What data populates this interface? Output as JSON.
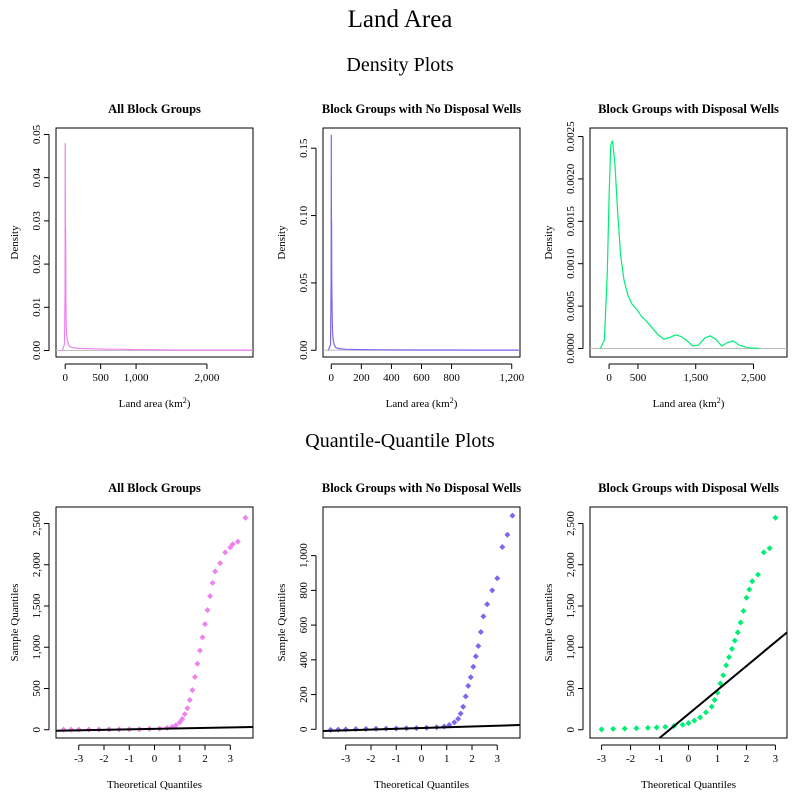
{
  "title": "Land Area",
  "sections": {
    "density": "Density Plots",
    "qq": "Quantile-Quantile Plots"
  },
  "colors": {
    "all": "#EE82EE",
    "no_wells": "#7B68EE",
    "with_wells": "#00EE76",
    "ref_line": "#000000",
    "baseline": "#BEBEBE"
  },
  "chart_data": [
    {
      "type": "line",
      "title": "All Block Groups",
      "xlabel": "Land area (km",
      "xlabel_sup": "2",
      "xlabel_end": ")",
      "ylabel": "Density",
      "color": "#EE82EE",
      "xlim": [
        -130,
        2650
      ],
      "ylim": [
        -0.0015,
        0.0515
      ],
      "xticks": [
        0,
        500,
        1000,
        2000
      ],
      "xticklabels": [
        "0",
        "500",
        "1,000",
        "2,000"
      ],
      "yticks": [
        0,
        0.01,
        0.02,
        0.03,
        0.04,
        0.05
      ],
      "yticklabels": [
        "0.00",
        "0.01",
        "0.02",
        "0.03",
        "0.04",
        "0.05"
      ],
      "x": [
        -40,
        -10,
        -2,
        0,
        2,
        4,
        6,
        8,
        10,
        14,
        20,
        30,
        45,
        60,
        80,
        120,
        200,
        400,
        600,
        800,
        1000,
        1300,
        1600,
        2000,
        2300,
        2650
      ],
      "y": [
        0,
        0.0015,
        0.015,
        0.048,
        0.03,
        0.0225,
        0.028,
        0.02,
        0.012,
        0.006,
        0.004,
        0.0025,
        0.0015,
        0.001,
        0.0008,
        0.0006,
        0.0005,
        0.0004,
        0.0003,
        0.0003,
        0.0002,
        0.0002,
        0.0001,
        0.0001,
        0.0001,
        0.0001
      ]
    },
    {
      "type": "line",
      "title": "Block Groups with No Disposal Wells",
      "xlabel": "Land area (km",
      "xlabel_sup": "2",
      "xlabel_end": ")",
      "ylabel": "Density",
      "color": "#7B68EE",
      "xlim": [
        -55,
        1255
      ],
      "ylim": [
        -0.005,
        0.165
      ],
      "xticks": [
        0,
        200,
        400,
        600,
        800,
        1200
      ],
      "xticklabels": [
        "0",
        "200",
        "400",
        "600",
        "800",
        "1,200"
      ],
      "yticks": [
        0,
        0.05,
        0.1,
        0.15
      ],
      "yticklabels": [
        "0.00",
        "0.05",
        "0.10",
        "0.15"
      ],
      "x": [
        -20,
        -5,
        -1,
        0,
        1,
        2,
        3,
        4,
        6,
        8,
        12,
        20,
        30,
        50,
        100,
        200,
        400,
        600,
        800,
        1000,
        1255
      ],
      "y": [
        0,
        0.004,
        0.05,
        0.16,
        0.1,
        0.093,
        0.06,
        0.042,
        0.025,
        0.015,
        0.008,
        0.004,
        0.002,
        0.0012,
        0.0007,
        0.0005,
        0.0003,
        0.0002,
        0.0002,
        0.0001,
        0.0001
      ]
    },
    {
      "type": "line",
      "title": "Block Groups with Disposal Wells",
      "xlabel": "Land area (km",
      "xlabel_sup": "2",
      "xlabel_end": ")",
      "ylabel": "Density",
      "color": "#00EE76",
      "xlim": [
        -330,
        3080
      ],
      "ylim": [
        -0.0001,
        0.0026
      ],
      "xticks": [
        0,
        500,
        1500,
        2500
      ],
      "xticklabels": [
        "0",
        "500",
        "1,500",
        "2,500"
      ],
      "yticks": [
        0,
        0.0005,
        0.001,
        0.0015,
        0.002,
        0.0025
      ],
      "yticklabels": [
        "0.0000",
        "0.0005",
        "0.0010",
        "0.0015",
        "0.0020",
        "0.0025"
      ],
      "x": [
        -150,
        -80,
        -30,
        0,
        30,
        60,
        100,
        150,
        200,
        260,
        330,
        400,
        480,
        560,
        650,
        750,
        850,
        950,
        1050,
        1150,
        1250,
        1350,
        1450,
        1550,
        1650,
        1750,
        1850,
        1950,
        2050,
        2150,
        2250,
        2400,
        2600
      ],
      "y": [
        0,
        0.0001,
        0.0009,
        0.0018,
        0.0024,
        0.00245,
        0.0022,
        0.0016,
        0.0011,
        0.0008,
        0.00062,
        0.00052,
        0.00046,
        0.00038,
        0.00032,
        0.00024,
        0.00016,
        0.00011,
        0.00013,
        0.00016,
        0.00014,
        9e-05,
        3e-05,
        4e-05,
        0.00012,
        0.00015,
        0.00011,
        3e-05,
        7e-05,
        9e-05,
        4e-05,
        1e-05,
        0
      ]
    },
    {
      "type": "scatter",
      "title": "All Block Groups",
      "xlabel": "Theoretical Quantiles",
      "ylabel": "Sample Quantiles",
      "color": "#EE82EE",
      "xlim": [
        -3.9,
        3.9
      ],
      "ylim": [
        -100,
        2700
      ],
      "xticks": [
        -3,
        -2,
        -1,
        0,
        1,
        2,
        3
      ],
      "xticklabels": [
        "-3",
        "-2",
        "-1",
        "0",
        "1",
        "2",
        "3"
      ],
      "yticks": [
        0,
        500,
        1000,
        1500,
        2000,
        2500
      ],
      "yticklabels": [
        "0",
        "500",
        "1,000",
        "1,500",
        "2,000",
        "2,500"
      ],
      "x": [
        -3.6,
        -3.3,
        -3.0,
        -2.6,
        -2.2,
        -1.8,
        -1.4,
        -1.0,
        -0.6,
        -0.2,
        0.2,
        0.5,
        0.7,
        0.85,
        1.0,
        1.1,
        1.2,
        1.3,
        1.4,
        1.5,
        1.6,
        1.7,
        1.8,
        1.9,
        2.0,
        2.1,
        2.2,
        2.3,
        2.4,
        2.6,
        2.8,
        3.0,
        3.1,
        3.3,
        3.6
      ],
      "y": [
        1,
        2,
        2,
        3,
        3,
        4,
        5,
        6,
        8,
        10,
        14,
        22,
        35,
        55,
        90,
        130,
        190,
        260,
        360,
        480,
        640,
        800,
        960,
        1120,
        1280,
        1450,
        1620,
        1780,
        1920,
        2020,
        2150,
        2210,
        2250,
        2280,
        2570
      ],
      "ref_line": [
        [
          -3.9,
          -12
        ],
        [
          3.9,
          33
        ]
      ]
    },
    {
      "type": "scatter",
      "title": "Block Groups with No Disposal Wells",
      "xlabel": "Theoretical Quantiles",
      "ylabel": "Sample Quantiles",
      "color": "#7B68EE",
      "xlim": [
        -3.9,
        3.9
      ],
      "ylim": [
        -50,
        1280
      ],
      "xticks": [
        -3,
        -2,
        -1,
        0,
        1,
        2,
        3
      ],
      "xticklabels": [
        "-3",
        "-2",
        "-1",
        "0",
        "1",
        "2",
        "3"
      ],
      "yticks": [
        0,
        200,
        400,
        600,
        800,
        1000
      ],
      "yticklabels": [
        "0",
        "200",
        "400",
        "600",
        "800",
        "1,000"
      ],
      "x": [
        -3.6,
        -3.3,
        -3.0,
        -2.6,
        -2.2,
        -1.8,
        -1.4,
        -1.0,
        -0.6,
        -0.2,
        0.2,
        0.6,
        0.9,
        1.1,
        1.3,
        1.45,
        1.55,
        1.65,
        1.75,
        1.85,
        1.95,
        2.05,
        2.15,
        2.25,
        2.35,
        2.45,
        2.6,
        2.8,
        3.0,
        3.2,
        3.4,
        3.6
      ],
      "y": [
        -3,
        -2,
        0,
        1,
        2,
        3,
        4,
        5,
        6,
        7,
        9,
        12,
        16,
        25,
        40,
        60,
        90,
        130,
        190,
        250,
        300,
        360,
        420,
        480,
        560,
        650,
        720,
        800,
        870,
        1050,
        1120,
        1230
      ],
      "ref_line": [
        [
          -3.9,
          -10
        ],
        [
          3.9,
          25
        ]
      ]
    },
    {
      "type": "scatter",
      "title": "Block Groups with Disposal Wells",
      "xlabel": "Theoretical Quantiles",
      "ylabel": "Sample Quantiles",
      "color": "#00EE76",
      "xlim": [
        -3.4,
        3.4
      ],
      "ylim": [
        -100,
        2700
      ],
      "xticks": [
        -3,
        -2,
        -1,
        0,
        1,
        2,
        3
      ],
      "xticklabels": [
        "-3",
        "-2",
        "-1",
        "0",
        "1",
        "2",
        "3"
      ],
      "yticks": [
        0,
        500,
        1000,
        1500,
        2000,
        2500
      ],
      "yticklabels": [
        "0",
        "500",
        "1,000",
        "1,500",
        "2,000",
        "2,500"
      ],
      "x": [
        -3.0,
        -2.6,
        -2.2,
        -1.8,
        -1.4,
        -1.1,
        -0.8,
        -0.5,
        -0.2,
        0.0,
        0.2,
        0.4,
        0.6,
        0.8,
        0.9,
        1.0,
        1.1,
        1.2,
        1.3,
        1.4,
        1.5,
        1.6,
        1.7,
        1.8,
        1.9,
        2.0,
        2.1,
        2.2,
        2.4,
        2.6,
        2.8,
        3.0
      ],
      "y": [
        5,
        10,
        14,
        18,
        22,
        28,
        35,
        45,
        60,
        80,
        110,
        150,
        210,
        280,
        360,
        450,
        560,
        660,
        780,
        880,
        980,
        1080,
        1180,
        1300,
        1440,
        1600,
        1700,
        1800,
        1880,
        2150,
        2200,
        2570
      ],
      "ref_line": [
        [
          -1.0,
          -100
        ],
        [
          3.4,
          1180
        ]
      ]
    }
  ]
}
